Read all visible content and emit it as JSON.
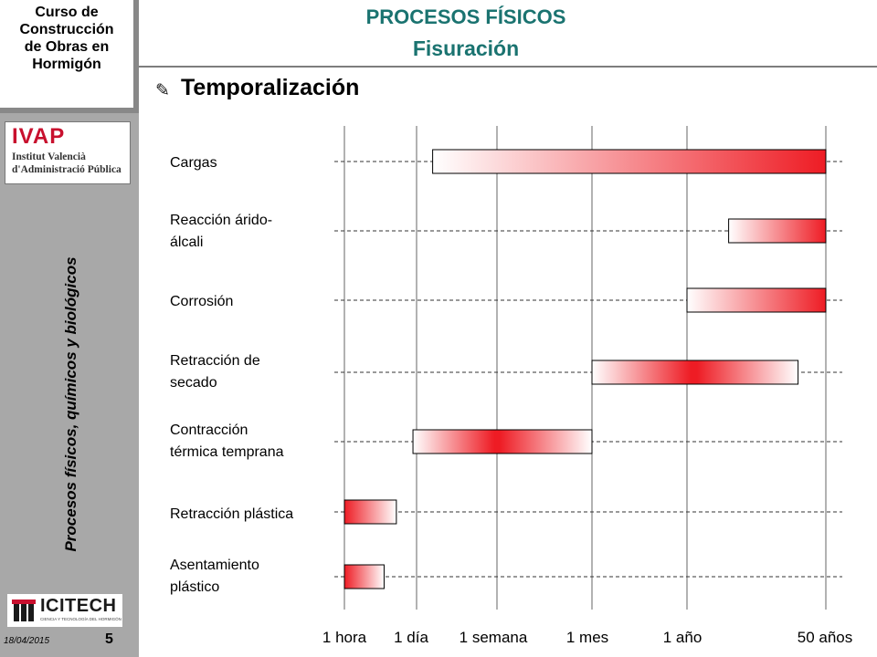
{
  "sidebar": {
    "course_title": "Curso de\nConstrucción\nde Obras en\nHormigón",
    "vertical_title": "Procesos físicos, químicos y biológicos",
    "ivap_logo": {
      "acronym": "IVAP",
      "line1": "Institut Valencià",
      "line2": "d'Administració Pública"
    },
    "icitech_logo": {
      "name": "ICITECH",
      "tagline": "CIENCIA Y TECNOLOGÍA DEL HORMIGÓN"
    },
    "date": "18/04/2015",
    "slide_number": "5"
  },
  "header": {
    "title": "PROCESOS FÍSICOS",
    "subtitle": "Fisuración"
  },
  "section": {
    "icon": "pencil-icon",
    "title": "Temporalización"
  },
  "colors": {
    "title_teal": "#1a7370",
    "bar_red": "#ee1c24",
    "sidebar_gray": "#a8a8a8"
  },
  "chart_data": {
    "type": "gantt",
    "x_ticks": [
      "1 hora",
      "1 día",
      "1 semana",
      "1 mes",
      "1 año",
      "50 años"
    ],
    "rows": [
      {
        "label": "Cargas",
        "start": 1.2,
        "end": 5.0,
        "peak": "end"
      },
      {
        "label": "Reacción árido-\nálcali",
        "start": 4.3,
        "end": 5.0,
        "peak": "end"
      },
      {
        "label": "Corrosión",
        "start": 4.0,
        "end": 5.0,
        "peak": "end"
      },
      {
        "label": "Retracción de\nsecado",
        "start": 3.0,
        "end": 4.8,
        "peak": 4.05
      },
      {
        "label": "Contracción\ntérmica temprana",
        "start": 0.95,
        "end": 3.0,
        "peak": 2.0
      },
      {
        "label": "Retracción plástica",
        "start": 0.0,
        "end": 0.72,
        "peak": "start"
      },
      {
        "label": "Asentamiento\nplástico",
        "start": 0.0,
        "end": 0.55,
        "peak": "start"
      }
    ]
  }
}
